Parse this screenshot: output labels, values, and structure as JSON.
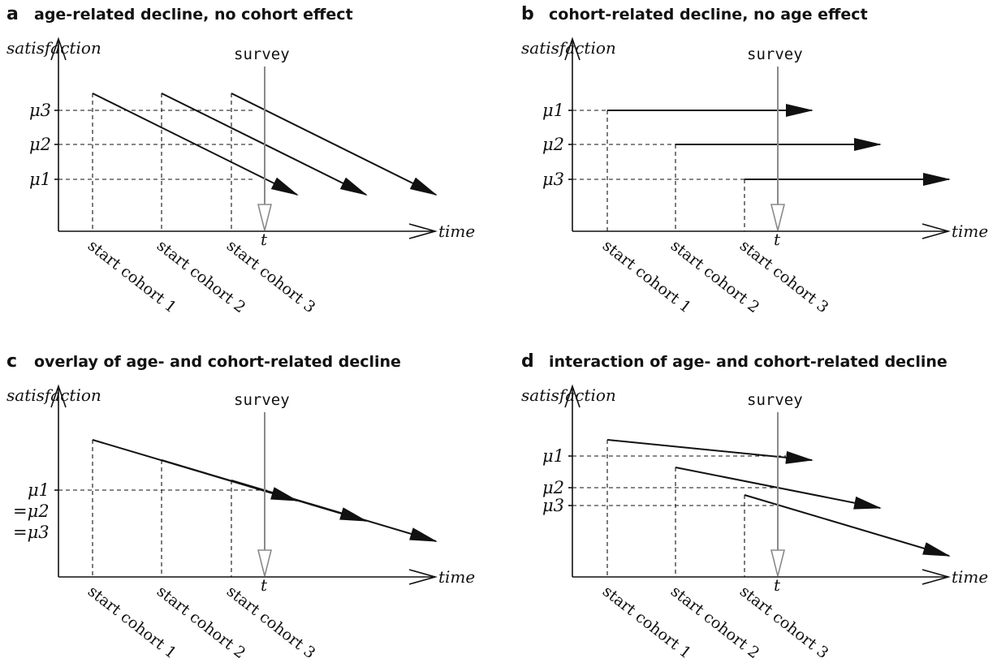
{
  "figure": {
    "panels": [
      {
        "letter": "a",
        "title": "age-related decline, no cohort effect",
        "y_axis_label": "satisfaction",
        "x_axis_label": "time",
        "survey_label": "survey",
        "survey_time_label": "t",
        "mu_labels": [
          {
            "text": "μ3"
          },
          {
            "text": "μ2"
          },
          {
            "text": "μ1"
          }
        ],
        "cohort_labels": [
          "start cohort 1",
          "start cohort 2",
          "start cohort 3"
        ]
      },
      {
        "letter": "b",
        "title": "cohort-related decline, no age effect",
        "y_axis_label": "satisfaction",
        "x_axis_label": "time",
        "survey_label": "survey",
        "survey_time_label": "t",
        "mu_labels": [
          {
            "text": "μ1"
          },
          {
            "text": "μ2"
          },
          {
            "text": "μ3"
          }
        ],
        "cohort_labels": [
          "start cohort 1",
          "start cohort 2",
          "start cohort 3"
        ]
      },
      {
        "letter": "c",
        "title": "overlay of age- and cohort-related decline",
        "y_axis_label": "satisfaction",
        "x_axis_label": "time",
        "survey_label": "survey",
        "survey_time_label": "t",
        "mu_labels": [
          {
            "text": "μ1"
          },
          {
            "text": "=μ2"
          },
          {
            "text": "=μ3"
          }
        ],
        "cohort_labels": [
          "start cohort 1",
          "start cohort 2",
          "start cohort 3"
        ]
      },
      {
        "letter": "d",
        "title": "interaction of age- and cohort-related decline",
        "y_axis_label": "satisfaction",
        "x_axis_label": "time",
        "survey_label": "survey",
        "survey_time_label": "t",
        "mu_labels": [
          {
            "text": "μ1"
          },
          {
            "text": "μ2"
          },
          {
            "text": "μ3"
          }
        ],
        "cohort_labels": [
          "start cohort 1",
          "start cohort 2",
          "start cohort 3"
        ]
      }
    ]
  }
}
